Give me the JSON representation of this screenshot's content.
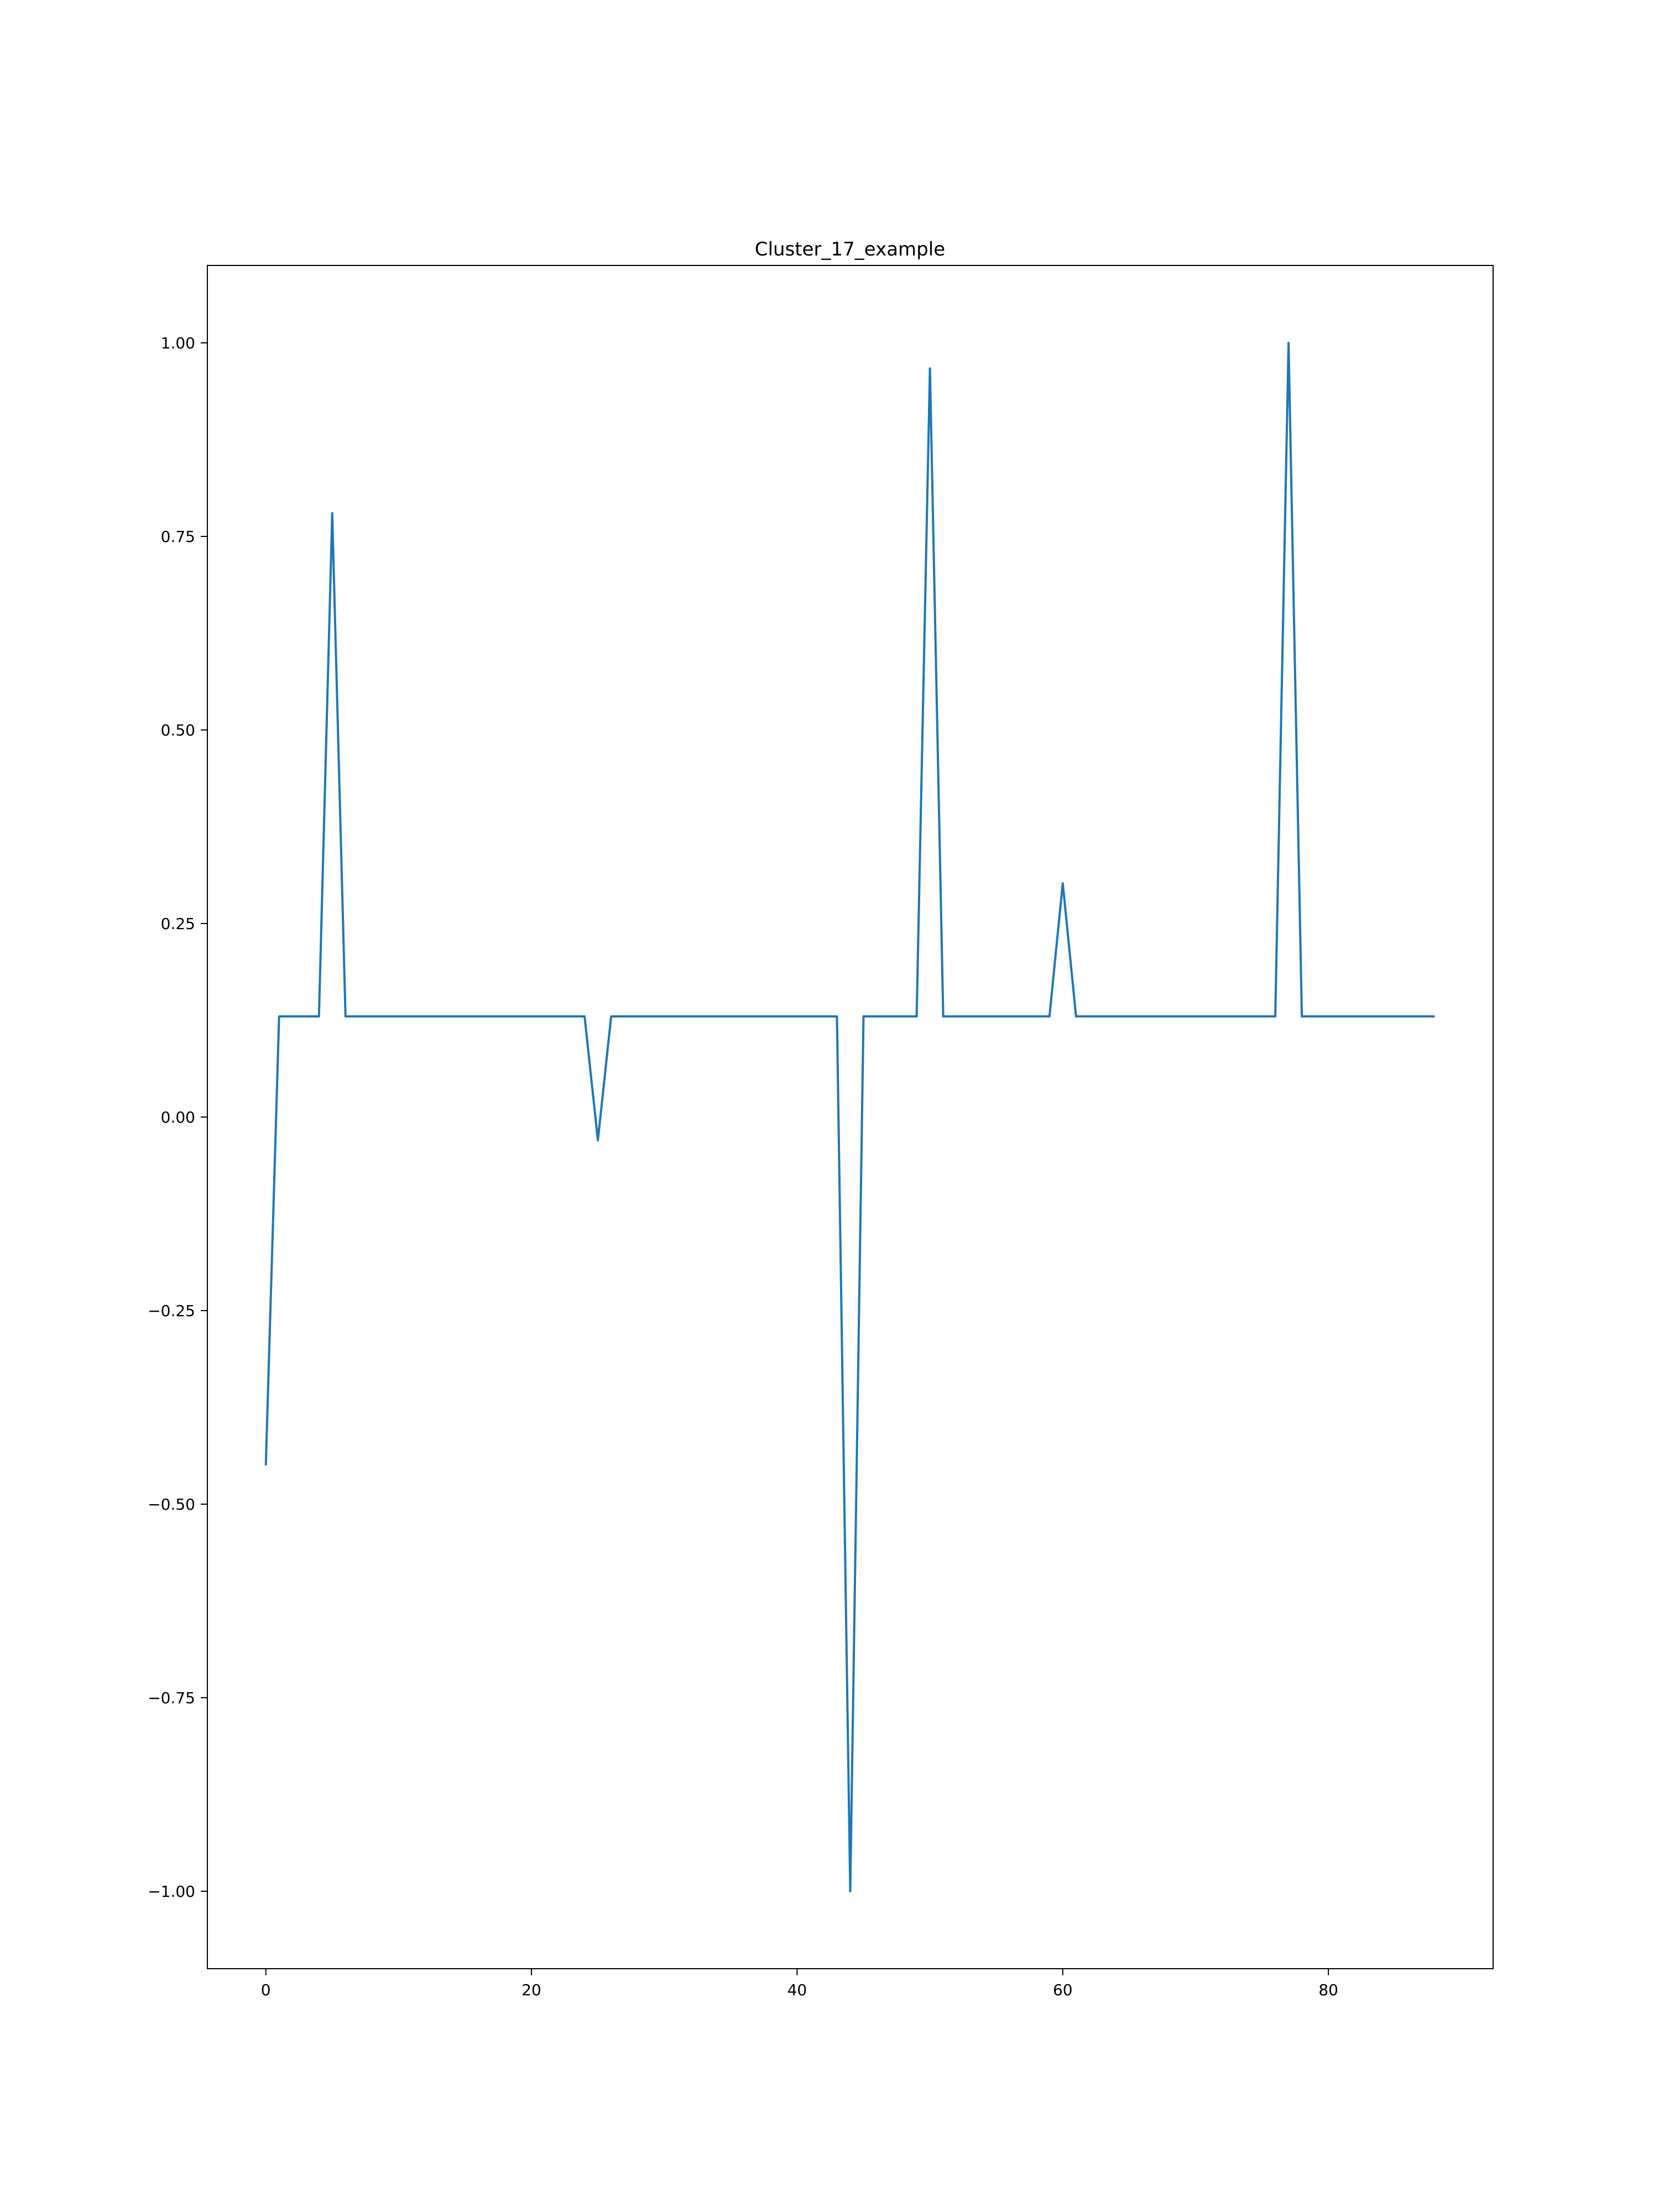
{
  "chart_data": {
    "type": "line",
    "title": "Cluster_17_example",
    "xlabel": "",
    "ylabel": "",
    "xlim": [
      -4.4,
      92.4
    ],
    "ylim": [
      -1.1,
      1.1
    ],
    "xticks": [
      0,
      20,
      40,
      60,
      80
    ],
    "xtick_labels": [
      "0",
      "20",
      "40",
      "60",
      "80"
    ],
    "yticks": [
      -1.0,
      -0.75,
      -0.5,
      -0.25,
      0.0,
      0.25,
      0.5,
      0.75,
      1.0
    ],
    "ytick_labels": [
      "−1.00",
      "−0.75",
      "−0.50",
      "−0.25",
      "0.00",
      "0.25",
      "0.50",
      "0.75",
      "1.00"
    ],
    "grid": false,
    "series": [
      {
        "color": "#1f77b4",
        "x": [
          0,
          1,
          4,
          5,
          6,
          24,
          25,
          26,
          43,
          44,
          45,
          49,
          50,
          51,
          59,
          60,
          61,
          76,
          77,
          78,
          88
        ],
        "y": [
          -0.45,
          0.13,
          0.13,
          0.78,
          0.13,
          0.13,
          -0.03,
          0.13,
          0.13,
          -1.0,
          0.13,
          0.13,
          0.967,
          0.13,
          0.13,
          0.302,
          0.13,
          0.13,
          1.0,
          0.13,
          0.13
        ]
      }
    ]
  }
}
